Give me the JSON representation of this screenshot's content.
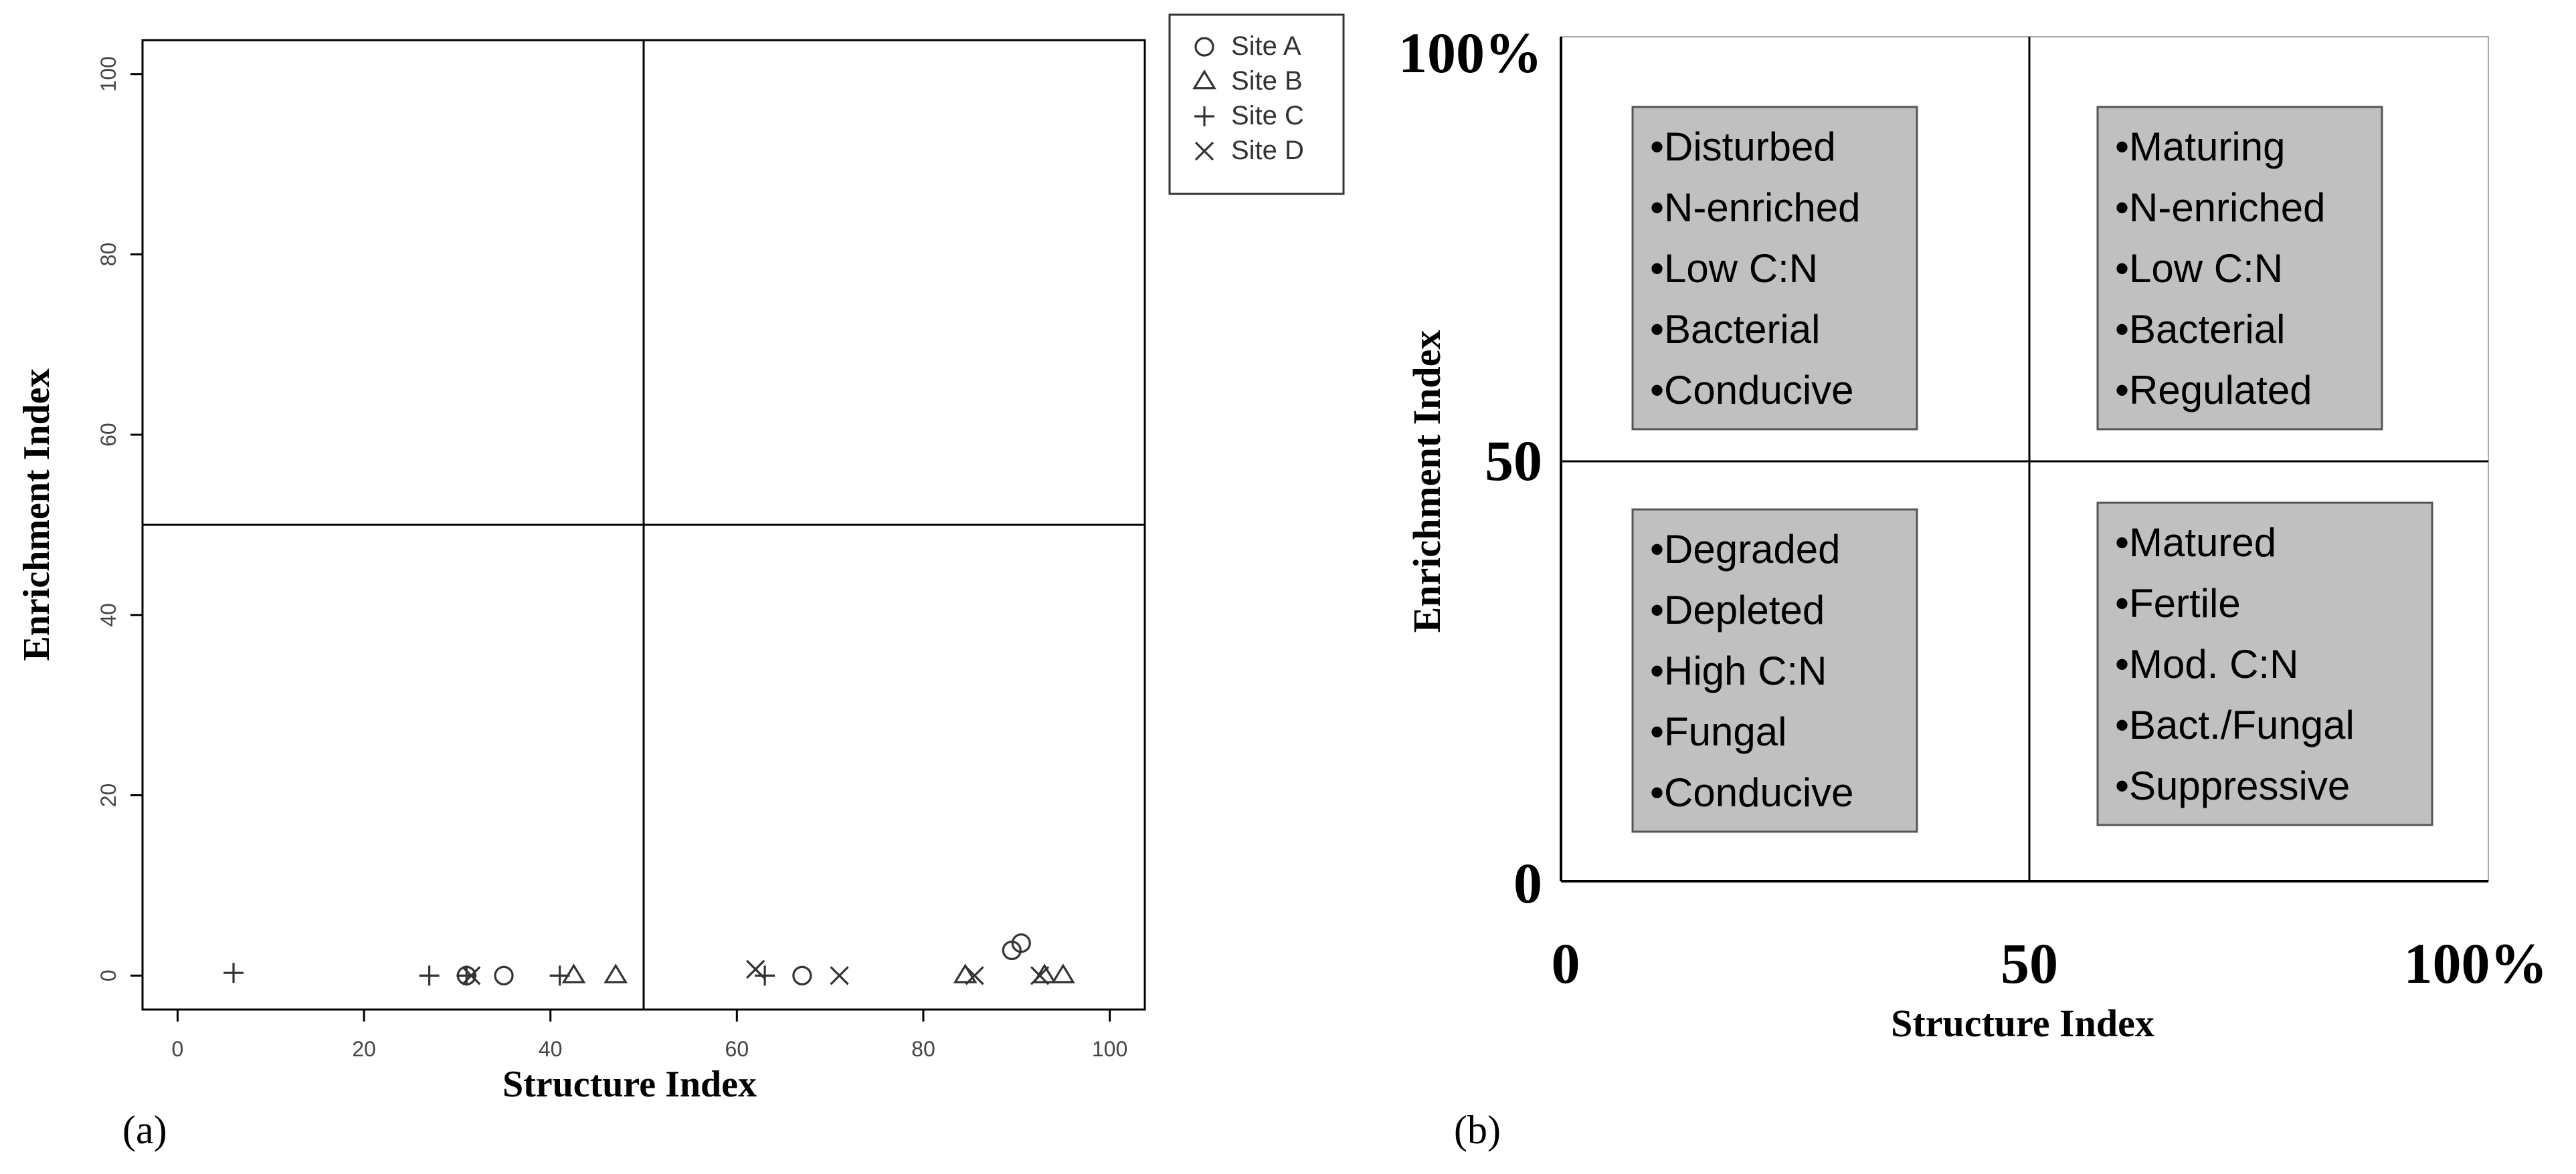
{
  "chart_data": [
    {
      "type": "scatter",
      "panel_label": "(a)",
      "xlabel": "Structure Index",
      "ylabel": "Enrichment Index",
      "xlim": [
        0,
        100
      ],
      "ylim": [
        0,
        100
      ],
      "x_ticks": [
        "0",
        "20",
        "40",
        "60",
        "80",
        "100"
      ],
      "y_ticks": [
        "0",
        "20",
        "40",
        "60",
        "80",
        "100"
      ],
      "quadrant_lines": {
        "x": 50,
        "y": 50
      },
      "legend_position": "top-right outside",
      "series": [
        {
          "name": "Site A",
          "marker": "circle",
          "legend_label": "Site A",
          "points": [
            [
              31,
              0
            ],
            [
              35,
              0
            ],
            [
              67,
              0
            ],
            [
              89.5,
              2.8
            ],
            [
              90.5,
              3.6
            ]
          ]
        },
        {
          "name": "Site B",
          "marker": "triangle",
          "legend_label": "Site B",
          "points": [
            [
              42.5,
              0
            ],
            [
              47,
              0
            ],
            [
              84.5,
              0
            ],
            [
              93,
              0
            ],
            [
              95,
              0
            ]
          ]
        },
        {
          "name": "Site C",
          "marker": "plus",
          "legend_label": "Site C",
          "points": [
            [
              6,
              0.3
            ],
            [
              27,
              0
            ],
            [
              31,
              0
            ],
            [
              41,
              0
            ],
            [
              63,
              0
            ]
          ]
        },
        {
          "name": "Site D",
          "marker": "cross",
          "legend_label": "Site D",
          "points": [
            [
              31.5,
              0
            ],
            [
              62,
              0.7
            ],
            [
              71,
              0
            ],
            [
              85.5,
              0
            ],
            [
              92.5,
              0
            ]
          ]
        }
      ]
    },
    {
      "type": "quadrant-diagram",
      "panel_label": "(b)",
      "xlabel": "Structure Index",
      "ylabel": "Enrichment Index",
      "x_ticks": [
        "0",
        "50",
        "100%"
      ],
      "y_ticks": [
        "0",
        "50",
        "100%"
      ],
      "quadrants": [
        {
          "position": "top-left",
          "items": [
            "•Disturbed",
            "•N-enriched",
            "•Low C:N",
            "•Bacterial",
            "•Conducive"
          ]
        },
        {
          "position": "top-right",
          "items": [
            "•Maturing",
            "•N-enriched",
            "•Low C:N",
            "•Bacterial",
            "•Regulated"
          ]
        },
        {
          "position": "bottom-left",
          "items": [
            "•Degraded",
            "•Depleted",
            "•High C:N",
            "•Fungal",
            "•Conducive"
          ]
        },
        {
          "position": "bottom-right",
          "items": [
            "•Matured",
            "•Fertile",
            "•Mod. C:N",
            "•Bact./Fungal",
            "•Suppressive"
          ]
        }
      ]
    }
  ],
  "colors": {
    "axis": "#000000",
    "box_fill": "#c0c0c0",
    "box_stroke": "#555555",
    "marker": "#333333",
    "tick_text": "#444444"
  }
}
